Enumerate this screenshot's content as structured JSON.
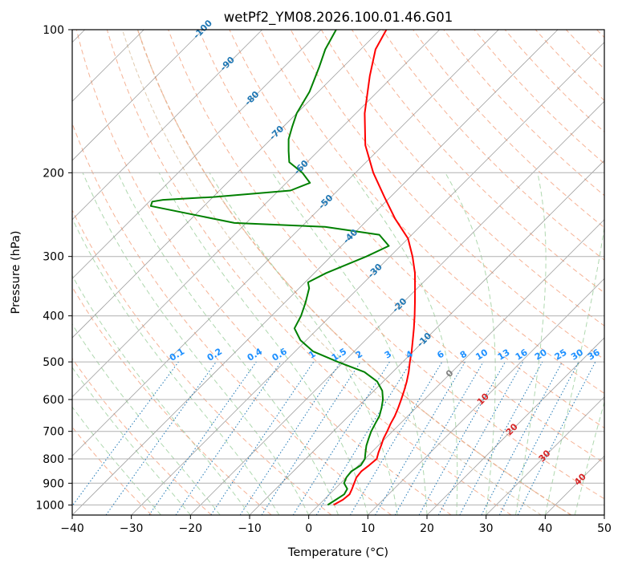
{
  "chart_data": {
    "type": "skew-t",
    "title": "wetPf2_YM08.2026.100.01.46.G01",
    "xlabel": "Temperature (°C)",
    "ylabel": "Pressure (hPa)",
    "xlim": [
      -40,
      50
    ],
    "ylim": [
      1050,
      100
    ],
    "y_scale": "log",
    "grid": true,
    "x_ticks": [
      -40,
      -30,
      -20,
      -10,
      0,
      10,
      20,
      30,
      40,
      50
    ],
    "x_tick_labels": [
      "−40",
      "−30",
      "−20",
      "−10",
      "0",
      "10",
      "20",
      "30",
      "40",
      "50"
    ],
    "y_ticks": [
      1000,
      900,
      800,
      700,
      600,
      500,
      400,
      300,
      200,
      100
    ],
    "y_tick_labels": [
      "1000",
      "900",
      "800",
      "700",
      "600",
      "500",
      "400",
      "300",
      "200",
      "100"
    ],
    "colors": {
      "temperature": "#ff0000",
      "dewpoint": "#008000",
      "isotherm_grid": "#808080",
      "isobar_grid": "#b0b0b0",
      "dry_adiabat": "#f4a582",
      "moist_adiabat": "#a6d4a6",
      "mixing_ratio": "#1f77b4",
      "mixing_ratio_label": "#1e90ff",
      "isotherm_label_cold": "#1f77b4",
      "isotherm_label_warm": "#d62728",
      "isotherm_label_zero": "#808080",
      "tan_curve": "#d2b48c"
    },
    "series": [
      {
        "name": "Temperature",
        "points": [
          [
            1000,
            2.5
          ],
          [
            975,
            3.2
          ],
          [
            950,
            3.4
          ],
          [
            925,
            2.9
          ],
          [
            900,
            2.3
          ],
          [
            875,
            1.7
          ],
          [
            850,
            1.5
          ],
          [
            825,
            1.8
          ],
          [
            800,
            2.0
          ],
          [
            775,
            1.2
          ],
          [
            750,
            0.5
          ],
          [
            725,
            -0.3
          ],
          [
            700,
            -0.9
          ],
          [
            675,
            -1.6
          ],
          [
            650,
            -2.2
          ],
          [
            625,
            -3.0
          ],
          [
            600,
            -3.9
          ],
          [
            575,
            -4.9
          ],
          [
            550,
            -6.0
          ],
          [
            525,
            -7.3
          ],
          [
            500,
            -8.8
          ],
          [
            475,
            -10.3
          ],
          [
            450,
            -12.0
          ],
          [
            425,
            -13.8
          ],
          [
            400,
            -15.8
          ],
          [
            375,
            -18.0
          ],
          [
            350,
            -20.4
          ],
          [
            325,
            -23.0
          ],
          [
            300,
            -26.2
          ],
          [
            275,
            -30.0
          ],
          [
            250,
            -35.5
          ],
          [
            225,
            -41.0
          ],
          [
            200,
            -47.0
          ],
          [
            175,
            -53.0
          ],
          [
            150,
            -58.5
          ],
          [
            125,
            -64.0
          ],
          [
            110,
            -67.5
          ],
          [
            100,
            -69.0
          ]
        ]
      },
      {
        "name": "Dewpoint",
        "points": [
          [
            1000,
            1.5
          ],
          [
            975,
            2.0
          ],
          [
            950,
            2.5
          ],
          [
            925,
            2.1
          ],
          [
            900,
            0.6
          ],
          [
            875,
            0.0
          ],
          [
            850,
            -0.2
          ],
          [
            825,
            0.4
          ],
          [
            800,
            0.0
          ],
          [
            775,
            -1.0
          ],
          [
            750,
            -2.0
          ],
          [
            725,
            -2.8
          ],
          [
            700,
            -3.6
          ],
          [
            675,
            -4.2
          ],
          [
            650,
            -4.8
          ],
          [
            625,
            -5.8
          ],
          [
            600,
            -7.0
          ],
          [
            575,
            -8.6
          ],
          [
            550,
            -11.0
          ],
          [
            525,
            -14.8
          ],
          [
            500,
            -21.0
          ],
          [
            475,
            -27.0
          ],
          [
            450,
            -31.0
          ],
          [
            425,
            -34.0
          ],
          [
            400,
            -35.0
          ],
          [
            375,
            -36.5
          ],
          [
            350,
            -38.3
          ],
          [
            340,
            -39.5
          ],
          [
            325,
            -38.0
          ],
          [
            300,
            -34.0
          ],
          [
            285,
            -32.0
          ],
          [
            270,
            -35.5
          ],
          [
            260,
            -46.0
          ],
          [
            255,
            -62.0
          ],
          [
            235,
            -79.0
          ],
          [
            230,
            -79.5
          ],
          [
            228,
            -78.0
          ],
          [
            225,
            -70.0
          ],
          [
            218,
            -58.0
          ],
          [
            210,
            -56.0
          ],
          [
            200,
            -59.0
          ],
          [
            190,
            -63.0
          ],
          [
            180,
            -65.0
          ],
          [
            170,
            -67.0
          ],
          [
            160,
            -68.5
          ],
          [
            150,
            -70.0
          ],
          [
            135,
            -71.5
          ],
          [
            120,
            -74.0
          ],
          [
            110,
            -76.0
          ],
          [
            100,
            -77.5
          ]
        ]
      }
    ],
    "isotherm_labels": [
      "-100",
      "-90",
      "-80",
      "-70",
      "-60",
      "-50",
      "-40",
      "-30",
      "-20",
      "-10",
      "0",
      "10",
      "20",
      "30",
      "40"
    ],
    "mixing_ratio_labels": [
      "0.1",
      "0.2",
      "0.4",
      "0.6",
      "1",
      "1.5",
      "2",
      "3",
      "4",
      "6",
      "8",
      "10",
      "13",
      "16",
      "20",
      "25",
      "30",
      "36"
    ]
  }
}
